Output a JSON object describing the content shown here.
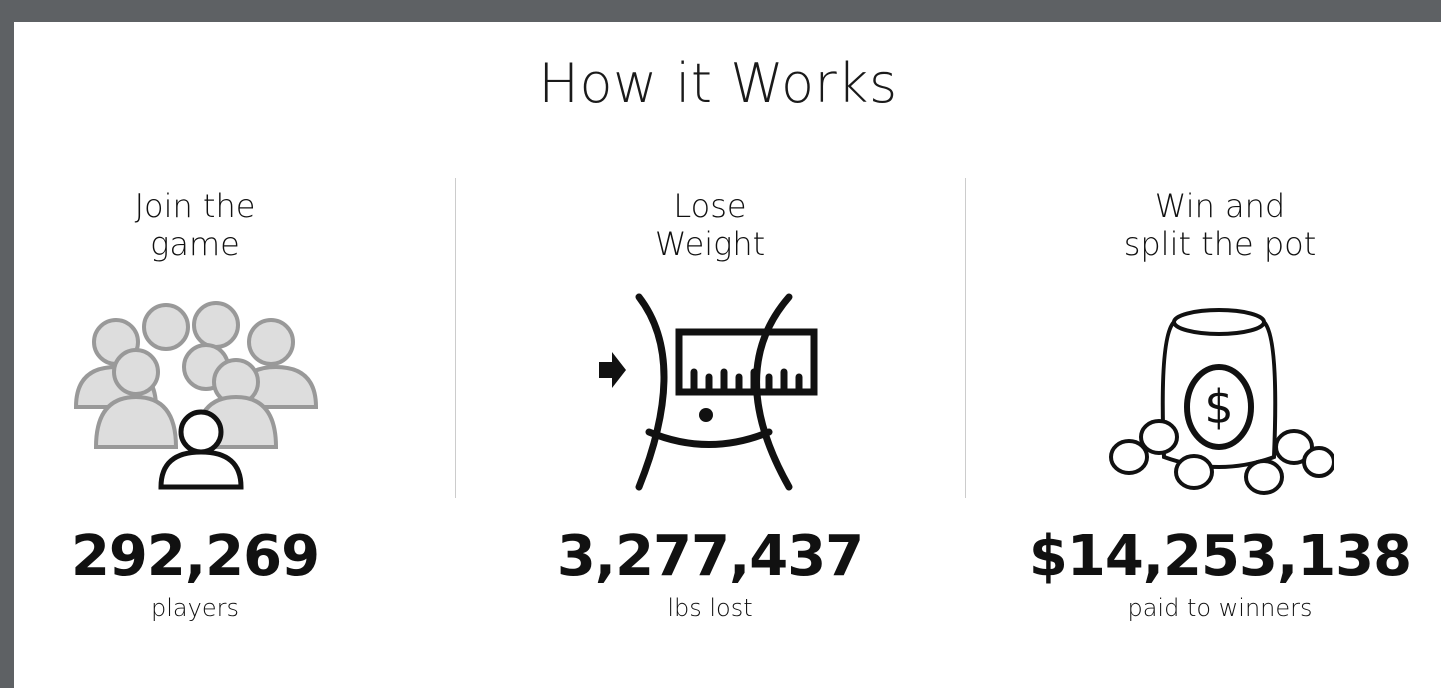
{
  "header": {
    "title": "How it Works"
  },
  "columns": [
    {
      "heading": [
        "Join the",
        "game"
      ],
      "stat": "292,269",
      "label": "players"
    },
    {
      "heading": [
        "Lose",
        "Weight"
      ],
      "stat": "3,277,437",
      "label": "lbs lost"
    },
    {
      "heading": [
        "Win and",
        "split the pot"
      ],
      "stat": "$14,253,138",
      "label": "paid to winners"
    }
  ]
}
